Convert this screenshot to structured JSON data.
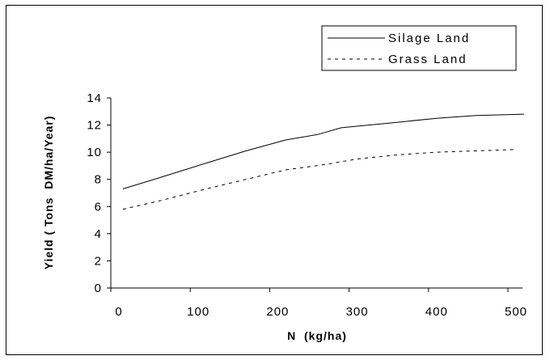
{
  "chart_data": {
    "type": "line",
    "xlabel": "N  (kg/ha)",
    "ylabel": "Yield ( Tons  DM/ha/Year)",
    "xlim": [
      0,
      520
    ],
    "ylim": [
      0,
      14
    ],
    "x_ticks": [
      "0",
      "100",
      "200",
      "300",
      "400",
      "500"
    ],
    "y_ticks": [
      "0",
      "2",
      "4",
      "6",
      "8",
      "10",
      "12",
      "14"
    ],
    "grid": false,
    "legend_position": "top-right",
    "series": [
      {
        "name": "Silage Land",
        "style": "solid",
        "color": "#000000",
        "x": [
          5,
          50,
          110,
          160,
          210,
          250,
          280,
          350,
          400,
          450,
          510
        ],
        "y": [
          7.3,
          8.1,
          9.2,
          10.1,
          10.9,
          11.3,
          11.8,
          12.2,
          12.5,
          12.7,
          12.8
        ]
      },
      {
        "name": "Grass Land",
        "style": "dashed",
        "color": "#000000",
        "x": [
          5,
          50,
          110,
          160,
          210,
          260,
          300,
          350,
          400,
          450,
          500
        ],
        "y": [
          5.8,
          6.4,
          7.3,
          8.0,
          8.7,
          9.1,
          9.5,
          9.8,
          10.0,
          10.1,
          10.2
        ]
      }
    ]
  }
}
